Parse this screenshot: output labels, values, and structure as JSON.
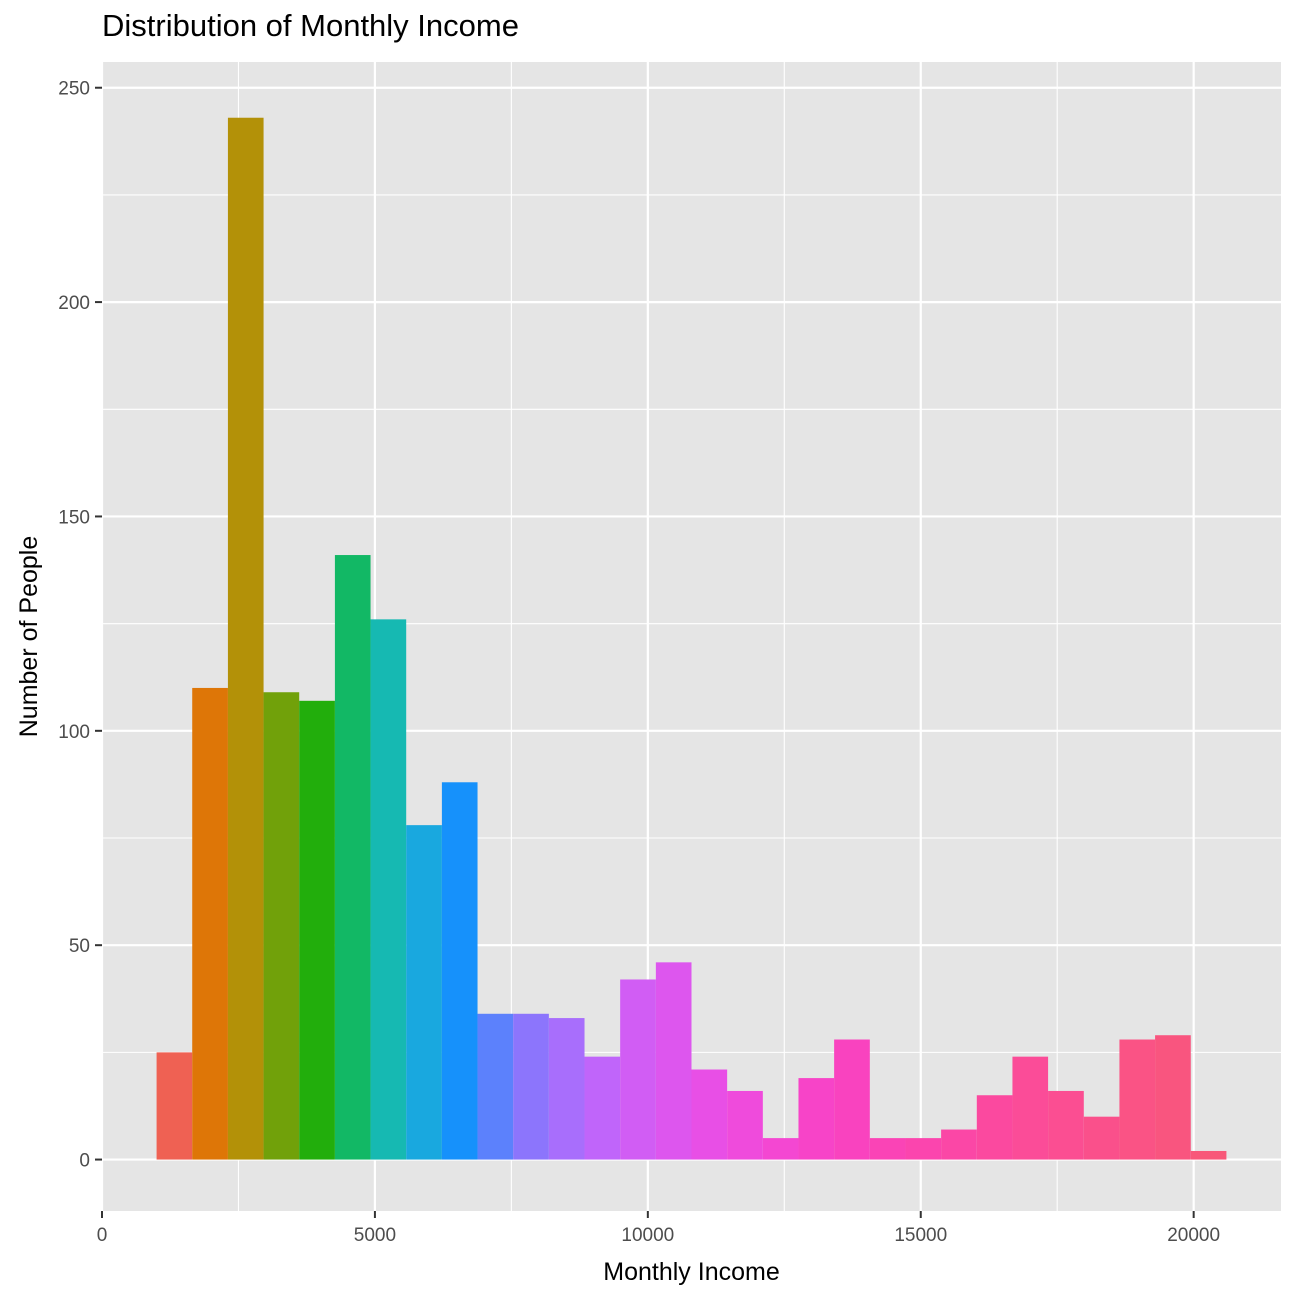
{
  "chart_data": {
    "type": "bar",
    "title": "Distribution of Monthly Income",
    "xlabel": "Monthly Income",
    "ylabel": "Number of People",
    "xlim": [
      0,
      21600
    ],
    "ylim": [
      -12,
      256
    ],
    "x_ticks": [
      0,
      5000,
      10000,
      15000,
      20000
    ],
    "y_ticks": [
      0,
      50,
      100,
      150,
      200,
      250
    ],
    "grid": true,
    "bins": [
      {
        "x0": 1000,
        "x1": 1653,
        "count": 25,
        "color": "#ef6153"
      },
      {
        "x0": 1653,
        "x1": 2307,
        "count": 110,
        "color": "#de7607"
      },
      {
        "x0": 2307,
        "x1": 2960,
        "count": 243,
        "color": "#b39108"
      },
      {
        "x0": 2960,
        "x1": 3613,
        "count": 109,
        "color": "#71a10a"
      },
      {
        "x0": 3613,
        "x1": 4267,
        "count": 107,
        "color": "#22ae0c"
      },
      {
        "x0": 4267,
        "x1": 4920,
        "count": 141,
        "color": "#12b865"
      },
      {
        "x0": 4920,
        "x1": 5573,
        "count": 126,
        "color": "#16b9b2"
      },
      {
        "x0": 5573,
        "x1": 6227,
        "count": 78,
        "color": "#19a8df"
      },
      {
        "x0": 6227,
        "x1": 6880,
        "count": 88,
        "color": "#1691fb"
      },
      {
        "x0": 6880,
        "x1": 7533,
        "count": 34,
        "color": "#5c81fc"
      },
      {
        "x0": 7533,
        "x1": 8187,
        "count": 34,
        "color": "#8c75fc"
      },
      {
        "x0": 8187,
        "x1": 8840,
        "count": 33,
        "color": "#a86efc"
      },
      {
        "x0": 8840,
        "x1": 9493,
        "count": 24,
        "color": "#c065fa"
      },
      {
        "x0": 9493,
        "x1": 10147,
        "count": 42,
        "color": "#d15df4"
      },
      {
        "x0": 10147,
        "x1": 10800,
        "count": 46,
        "color": "#dd56ee"
      },
      {
        "x0": 10800,
        "x1": 11453,
        "count": 21,
        "color": "#e84fe6"
      },
      {
        "x0": 11453,
        "x1": 12107,
        "count": 16,
        "color": "#ef4bdc"
      },
      {
        "x0": 12107,
        "x1": 12760,
        "count": 5,
        "color": "#f447d2"
      },
      {
        "x0": 12760,
        "x1": 13413,
        "count": 19,
        "color": "#f744c8"
      },
      {
        "x0": 13413,
        "x1": 14067,
        "count": 28,
        "color": "#f943bf"
      },
      {
        "x0": 14067,
        "x1": 14720,
        "count": 5,
        "color": "#fa44b6"
      },
      {
        "x0": 14720,
        "x1": 15373,
        "count": 5,
        "color": "#fb45ae"
      },
      {
        "x0": 15373,
        "x1": 16027,
        "count": 7,
        "color": "#fb47a6"
      },
      {
        "x0": 16027,
        "x1": 16680,
        "count": 15,
        "color": "#fb499f"
      },
      {
        "x0": 16680,
        "x1": 17333,
        "count": 24,
        "color": "#fb4c98"
      },
      {
        "x0": 17333,
        "x1": 17987,
        "count": 16,
        "color": "#fb4e92"
      },
      {
        "x0": 17987,
        "x1": 18640,
        "count": 10,
        "color": "#fa508b"
      },
      {
        "x0": 18640,
        "x1": 19293,
        "count": 28,
        "color": "#fa5385"
      },
      {
        "x0": 19293,
        "x1": 19947,
        "count": 29,
        "color": "#f9557f"
      },
      {
        "x0": 19947,
        "x1": 20600,
        "count": 2,
        "color": "#f85879"
      }
    ]
  },
  "colors": {
    "panel_bg": "#e5e5e5",
    "grid_major": "#ffffff",
    "tick_text": "#4d4d4d"
  }
}
